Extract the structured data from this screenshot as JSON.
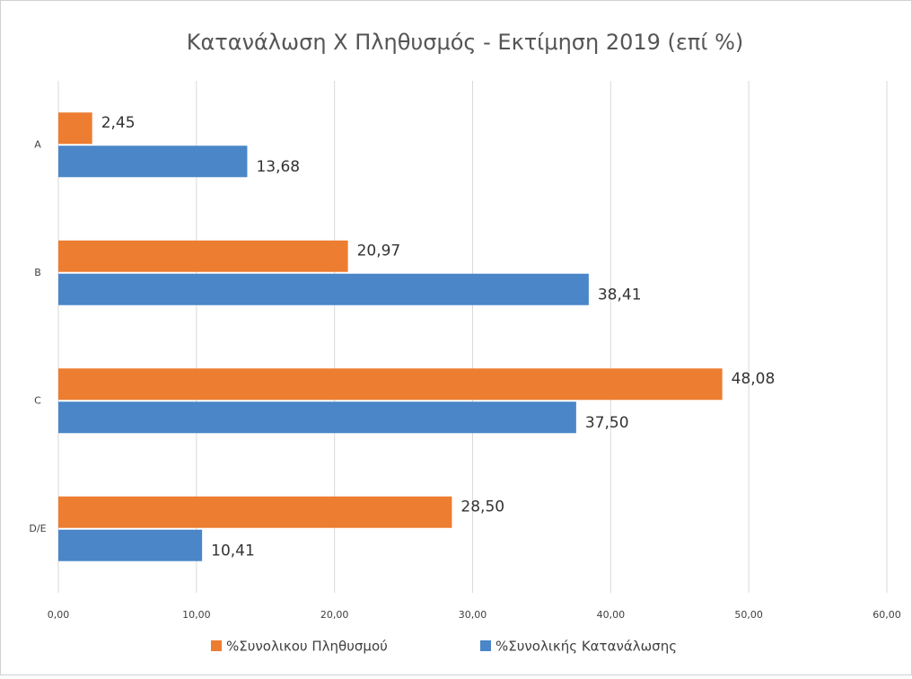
{
  "chart_data": {
    "type": "barh",
    "title": "Κατανάλωση Χ Πληθυσμός - Εκτίμηση 2019 (επί %)",
    "categories": [
      "A",
      "B",
      "C",
      "D/E"
    ],
    "series": [
      {
        "name": "%Συνολικου Πληθυσμού",
        "color": "#ed7d31",
        "values": [
          2.45,
          20.97,
          48.08,
          28.5
        ],
        "value_labels": [
          "2,45",
          "20,97",
          "48,08",
          "28,50"
        ]
      },
      {
        "name": "%Συνολικής Κατανάλωσης",
        "color": "#4a86c8",
        "values": [
          13.68,
          38.41,
          37.5,
          10.41
        ],
        "value_labels": [
          "13,68",
          "38,41",
          "37,50",
          "10,41"
        ]
      }
    ],
    "xlim": [
      0,
      60
    ],
    "xticks": [
      {
        "value": 0,
        "label": "0,00"
      },
      {
        "value": 10,
        "label": "10,00"
      },
      {
        "value": 20,
        "label": "20,00"
      },
      {
        "value": 30,
        "label": "30,00"
      },
      {
        "value": 40,
        "label": "40,00"
      },
      {
        "value": 50,
        "label": "50,00"
      },
      {
        "value": 60,
        "label": "60,00"
      }
    ],
    "grid": true,
    "legend": "bottom"
  }
}
